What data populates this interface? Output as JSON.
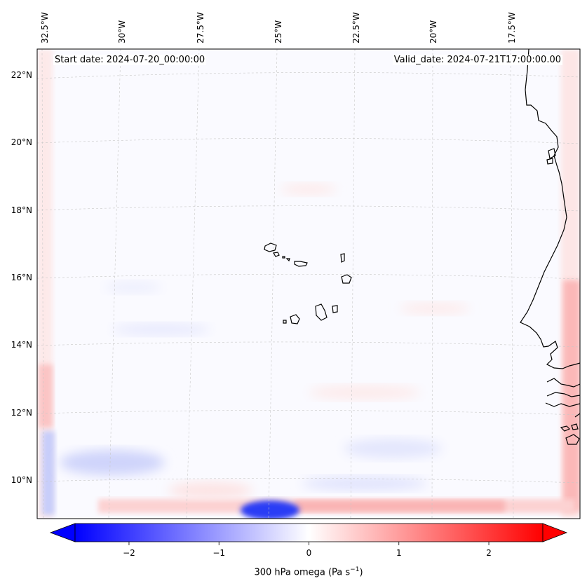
{
  "map": {
    "variable_label": "300 hPa omega (Pa s",
    "variable_exponent": "−1",
    "variable_suffix": ")",
    "start_date": "Start date: 2024-07-20_00:00:00",
    "valid_date": "Valid_date: 2024-07-21T17:00:00.00",
    "lon_labels": [
      "32.5°W",
      "30°W",
      "27.5°W",
      "25°W",
      "22.5°W",
      "20°W",
      "17.5°W"
    ],
    "lat_labels": [
      "22°N",
      "20°N",
      "18°N",
      "16°N",
      "14°N",
      "12°N",
      "10°N"
    ],
    "colorbar": {
      "ticks": [
        "−2",
        "−1",
        "0",
        "1",
        "2"
      ],
      "tick_values": [
        -2,
        -1,
        0,
        1,
        2
      ],
      "min": -2.6,
      "max": 2.6,
      "color_low": "#0000ff",
      "color_mid": "#ffffff",
      "color_high": "#ff0000"
    }
  }
}
